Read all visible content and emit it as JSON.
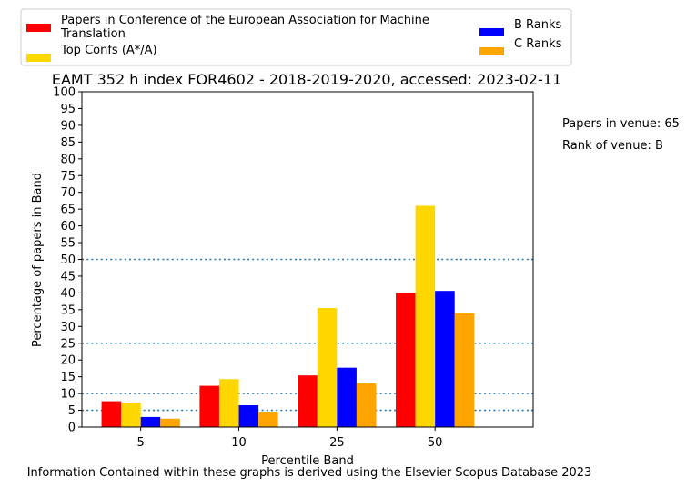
{
  "chart_data": {
    "type": "bar",
    "title": "EAMT 352 h index FOR4602 - 2018-2019-2020, accessed: 2023-02-11",
    "xlabel": "Percentile Band",
    "ylabel": "Percentage of papers in Band",
    "categories": [
      "5",
      "10",
      "25",
      "50"
    ],
    "ylim": [
      0,
      100
    ],
    "yticks": [
      "0",
      "5",
      "10",
      "15",
      "20",
      "25",
      "30",
      "35",
      "40",
      "45",
      "50",
      "55",
      "60",
      "65",
      "70",
      "75",
      "80",
      "85",
      "90",
      "95",
      "100"
    ],
    "reference_lines": [
      5,
      10,
      25,
      50
    ],
    "series": [
      {
        "name": "Papers in Conference of the European Association for Machine Translation",
        "legend_lines": [
          "Papers in Conference of the European Association for Machine",
          "Translation"
        ],
        "color": "#ff0000",
        "values": [
          7.7,
          12.3,
          15.4,
          40.0
        ]
      },
      {
        "name": "Top Confs (A*/A)",
        "legend_lines": [
          "Top Confs (A*/A)"
        ],
        "color": "#ffd700",
        "values": [
          7.3,
          14.3,
          35.5,
          66.0
        ]
      },
      {
        "name": "B Ranks",
        "legend_lines": [
          "B Ranks"
        ],
        "color": "#0000ff",
        "values": [
          3.0,
          6.5,
          17.7,
          40.6
        ]
      },
      {
        "name": "C Ranks",
        "legend_lines": [
          "C Ranks"
        ],
        "color": "#ffa500",
        "values": [
          2.5,
          4.4,
          13.0,
          33.9
        ]
      }
    ],
    "legend_position": "top",
    "grid": false
  },
  "side_notes": {
    "papers_in_venue": "Papers in venue: 65",
    "rank_of_venue": "Rank of venue: B"
  },
  "footer": "Information Contained within these graphs is derived using the Elsevier Scopus Database 2023"
}
